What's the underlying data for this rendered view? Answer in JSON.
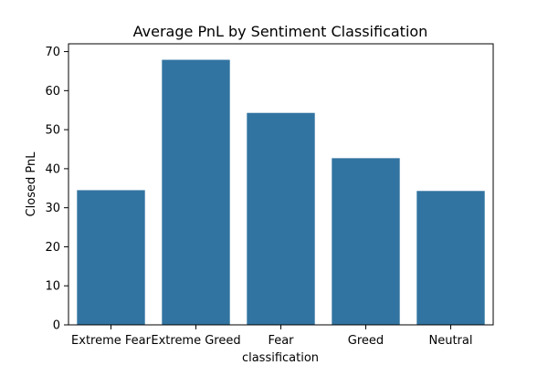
{
  "chart_data": {
    "type": "bar",
    "title": "Average PnL by Sentiment Classification",
    "xlabel": "classification",
    "ylabel": "Closed PnL",
    "categories": [
      "Extreme Fear",
      "Extreme Greed",
      "Fear",
      "Greed",
      "Neutral"
    ],
    "values": [
      34.5,
      67.9,
      54.3,
      42.7,
      34.3
    ],
    "ylim": [
      0,
      72
    ],
    "yticks": [
      0,
      10,
      20,
      30,
      40,
      50,
      60,
      70
    ],
    "grid": false,
    "bar_color": "#3274a1"
  }
}
